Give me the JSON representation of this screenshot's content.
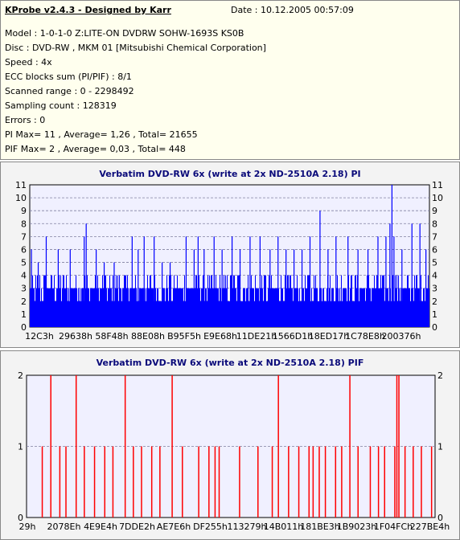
{
  "info": {
    "title": "KProbe v2.4.3 - Designed by Karr",
    "date": "Date : 10.12.2005 00:57:09",
    "lines": [
      "Model : 1-0-1-0 Z:LITE-ON DVDRW SOHW-1693S KS0B",
      "Disc : DVD-RW , MKM 01 [Mitsubishi Chemical Corporation]",
      "Speed : 4x",
      "ECC blocks sum (PI/PIF) : 8/1",
      "Scanned range : 0 - 2298492",
      "Sampling count : 128319",
      "Errors : 0",
      "PI Max= 11 , Average= 1,26 , Total= 21655",
      "PIF Max= 2 , Average= 0,03 , Total= 448"
    ]
  },
  "colors": {
    "pi": "#0000ff",
    "pif": "#ff0000",
    "plot_bg": "#f0f0ff",
    "grid": "#8080a0"
  },
  "chart_data": [
    {
      "type": "bar",
      "title": "Verbatim DVD-RW 6x (write at 2x ND-2510A 2.18) PI",
      "xlabel": "",
      "ylabel": "",
      "ylim": [
        0,
        11
      ],
      "yticks": [
        0,
        1,
        2,
        3,
        4,
        5,
        6,
        7,
        8,
        9,
        10,
        11
      ],
      "grid": "horizontal dashed",
      "xticks": [
        "12C3h",
        "29638h",
        "58F48h",
        "88E08h",
        "B95F5h",
        "E9E68h",
        "11DE21h",
        "1566D1h",
        "18ED17h",
        "1C78E8h",
        "200376h"
      ],
      "series": [
        {
          "baseline_range": [
            2,
            4
          ],
          "spikes": [
            {
              "x": 0.003,
              "y": 6
            },
            {
              "x": 0.02,
              "y": 5
            },
            {
              "x": 0.04,
              "y": 7
            },
            {
              "x": 0.07,
              "y": 6
            },
            {
              "x": 0.1,
              "y": 6
            },
            {
              "x": 0.135,
              "y": 7
            },
            {
              "x": 0.14,
              "y": 8
            },
            {
              "x": 0.165,
              "y": 6
            },
            {
              "x": 0.185,
              "y": 5
            },
            {
              "x": 0.21,
              "y": 5
            },
            {
              "x": 0.255,
              "y": 7
            },
            {
              "x": 0.27,
              "y": 6
            },
            {
              "x": 0.285,
              "y": 7
            },
            {
              "x": 0.31,
              "y": 7
            },
            {
              "x": 0.33,
              "y": 5
            },
            {
              "x": 0.35,
              "y": 5
            },
            {
              "x": 0.39,
              "y": 7
            },
            {
              "x": 0.41,
              "y": 6
            },
            {
              "x": 0.42,
              "y": 7
            },
            {
              "x": 0.435,
              "y": 6
            },
            {
              "x": 0.46,
              "y": 7
            },
            {
              "x": 0.48,
              "y": 6
            },
            {
              "x": 0.505,
              "y": 7
            },
            {
              "x": 0.525,
              "y": 6
            },
            {
              "x": 0.55,
              "y": 7
            },
            {
              "x": 0.575,
              "y": 7
            },
            {
              "x": 0.6,
              "y": 6
            },
            {
              "x": 0.62,
              "y": 7
            },
            {
              "x": 0.64,
              "y": 6
            },
            {
              "x": 0.66,
              "y": 6
            },
            {
              "x": 0.68,
              "y": 6
            },
            {
              "x": 0.7,
              "y": 7
            },
            {
              "x": 0.725,
              "y": 9
            },
            {
              "x": 0.745,
              "y": 6
            },
            {
              "x": 0.765,
              "y": 7
            },
            {
              "x": 0.795,
              "y": 7
            },
            {
              "x": 0.82,
              "y": 6
            },
            {
              "x": 0.845,
              "y": 6
            },
            {
              "x": 0.87,
              "y": 7
            },
            {
              "x": 0.89,
              "y": 7
            },
            {
              "x": 0.9,
              "y": 8
            },
            {
              "x": 0.905,
              "y": 11
            },
            {
              "x": 0.91,
              "y": 7
            },
            {
              "x": 0.93,
              "y": 6
            },
            {
              "x": 0.955,
              "y": 8
            },
            {
              "x": 0.975,
              "y": 8
            },
            {
              "x": 0.99,
              "y": 6
            }
          ]
        }
      ]
    },
    {
      "type": "bar",
      "title": "Verbatim DVD-RW 6x (write at 2x ND-2510A 2.18) PIF",
      "xlabel": "",
      "ylabel": "",
      "ylim": [
        0,
        2
      ],
      "yticks": [
        0,
        1,
        2
      ],
      "grid": "horizontal dashed",
      "xticks": [
        "29h",
        "2078Eh",
        "4E9E4h",
        "7DDE2h",
        "AE7E6h",
        "DF255h",
        "113279h",
        "14B011h",
        "181BE3h",
        "1B9023h",
        "1F04FCh",
        "227BE4h"
      ],
      "series": [
        {
          "spikes": [
            {
              "x": 0.037,
              "y": 1
            },
            {
              "x": 0.058,
              "y": 2
            },
            {
              "x": 0.08,
              "y": 1
            },
            {
              "x": 0.095,
              "y": 1
            },
            {
              "x": 0.12,
              "y": 2
            },
            {
              "x": 0.14,
              "y": 1
            },
            {
              "x": 0.165,
              "y": 1
            },
            {
              "x": 0.19,
              "y": 1
            },
            {
              "x": 0.21,
              "y": 1
            },
            {
              "x": 0.24,
              "y": 2
            },
            {
              "x": 0.26,
              "y": 1
            },
            {
              "x": 0.28,
              "y": 1
            },
            {
              "x": 0.305,
              "y": 1
            },
            {
              "x": 0.325,
              "y": 1
            },
            {
              "x": 0.355,
              "y": 2
            },
            {
              "x": 0.38,
              "y": 1
            },
            {
              "x": 0.42,
              "y": 1
            },
            {
              "x": 0.445,
              "y": 1
            },
            {
              "x": 0.46,
              "y": 1
            },
            {
              "x": 0.47,
              "y": 1
            },
            {
              "x": 0.52,
              "y": 1
            },
            {
              "x": 0.565,
              "y": 1
            },
            {
              "x": 0.6,
              "y": 1
            },
            {
              "x": 0.615,
              "y": 2
            },
            {
              "x": 0.64,
              "y": 1
            },
            {
              "x": 0.665,
              "y": 1
            },
            {
              "x": 0.69,
              "y": 1
            },
            {
              "x": 0.7,
              "y": 1
            },
            {
              "x": 0.715,
              "y": 1
            },
            {
              "x": 0.73,
              "y": 1
            },
            {
              "x": 0.755,
              "y": 1
            },
            {
              "x": 0.77,
              "y": 1
            },
            {
              "x": 0.79,
              "y": 2
            },
            {
              "x": 0.81,
              "y": 1
            },
            {
              "x": 0.84,
              "y": 1
            },
            {
              "x": 0.86,
              "y": 1
            },
            {
              "x": 0.875,
              "y": 1
            },
            {
              "x": 0.9,
              "y": 1
            },
            {
              "x": 0.905,
              "y": 2
            },
            {
              "x": 0.91,
              "y": 2
            },
            {
              "x": 0.925,
              "y": 1
            },
            {
              "x": 0.945,
              "y": 1
            },
            {
              "x": 0.965,
              "y": 1
            },
            {
              "x": 0.99,
              "y": 1
            }
          ]
        }
      ]
    }
  ]
}
